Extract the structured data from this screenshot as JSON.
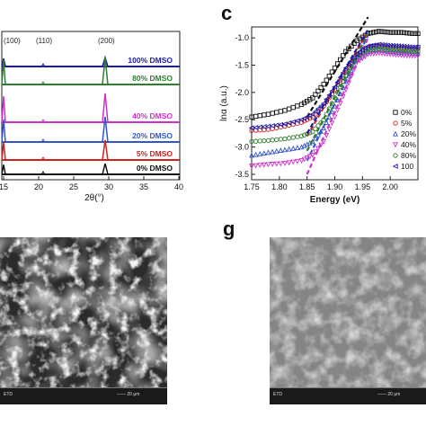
{
  "panel_labels": {
    "c": "c",
    "g": "g"
  },
  "xrd": {
    "peak_labels": [
      "(100)",
      "(110)",
      "(200)"
    ],
    "samples": [
      "100% DMSO",
      "80% DMSO",
      "40% DMSO",
      "20% DMSO",
      "5% DMSO",
      "0% DMSO"
    ],
    "colors": [
      "#1a1aa8",
      "#2f7d2f",
      "#cc33cc",
      "#3355cc",
      "#cc2222",
      "#111111"
    ],
    "x_ticks": [
      "15",
      "20",
      "25",
      "30",
      "35",
      "40"
    ],
    "xlabel": "2θ(°)"
  },
  "chart_data": {
    "type": "scatter",
    "xlabel": "Energy (eV)",
    "ylabel": "lnα (a.u.)",
    "xlim": [
      1.75,
      2.05
    ],
    "ylim": [
      -3.6,
      -0.8
    ],
    "x_ticks": [
      "1.75",
      "1.80",
      "1.85",
      "1.90",
      "1.95",
      "2.00"
    ],
    "y_ticks": [
      "-1.0",
      "-1.5",
      "-2.0",
      "-2.5",
      "-3.0",
      "-3.5"
    ],
    "legend_labels": [
      "0%",
      "5%",
      "20%",
      "40%",
      "80%",
      "100"
    ],
    "series": [
      {
        "label": "0%",
        "color": "#111111",
        "marker": "square",
        "x": [
          1.75,
          1.78,
          1.81,
          1.84,
          1.86,
          1.88,
          1.9,
          1.92,
          1.94,
          1.96,
          1.98,
          2.0,
          2.02,
          2.04
        ],
        "y": [
          -2.45,
          -2.4,
          -2.33,
          -2.22,
          -2.1,
          -1.85,
          -1.55,
          -1.25,
          -1.05,
          -0.92,
          -0.88,
          -0.9,
          -0.9,
          -0.92
        ]
      },
      {
        "label": "5%",
        "color": "#cc2222",
        "marker": "circle",
        "x": [
          1.75,
          1.78,
          1.81,
          1.84,
          1.86,
          1.88,
          1.9,
          1.92,
          1.94,
          1.96,
          1.98,
          2.0,
          2.02,
          2.04
        ],
        "y": [
          -2.7,
          -2.68,
          -2.62,
          -2.55,
          -2.45,
          -2.25,
          -1.95,
          -1.6,
          -1.3,
          -1.18,
          -1.15,
          -1.17,
          -1.18,
          -1.2
        ]
      },
      {
        "label": "20%",
        "color": "#3355cc",
        "marker": "triangle-up",
        "x": [
          1.75,
          1.78,
          1.81,
          1.84,
          1.86,
          1.88,
          1.9,
          1.92,
          1.94,
          1.96,
          1.98,
          2.0,
          2.02,
          2.04
        ],
        "y": [
          -3.15,
          -3.1,
          -3.05,
          -3.0,
          -2.9,
          -2.65,
          -2.25,
          -1.8,
          -1.4,
          -1.25,
          -1.22,
          -1.25,
          -1.27,
          -1.28
        ]
      },
      {
        "label": "40%",
        "color": "#cc33cc",
        "marker": "triangle-down",
        "x": [
          1.75,
          1.78,
          1.81,
          1.84,
          1.86,
          1.88,
          1.9,
          1.92,
          1.94,
          1.96,
          1.98,
          2.0,
          2.02,
          2.04
        ],
        "y": [
          -3.35,
          -3.32,
          -3.3,
          -3.25,
          -3.15,
          -2.9,
          -2.45,
          -1.95,
          -1.45,
          -1.3,
          -1.28,
          -1.3,
          -1.32,
          -1.33
        ]
      },
      {
        "label": "80%",
        "color": "#2f7d2f",
        "marker": "circle",
        "x": [
          1.75,
          1.78,
          1.81,
          1.84,
          1.86,
          1.88,
          1.9,
          1.92,
          1.94,
          1.96,
          1.98,
          2.0,
          2.02,
          2.04
        ],
        "y": [
          -2.9,
          -2.88,
          -2.85,
          -2.8,
          -2.72,
          -2.5,
          -2.1,
          -1.7,
          -1.35,
          -1.22,
          -1.2,
          -1.22,
          -1.23,
          -1.25
        ]
      },
      {
        "label": "100",
        "color": "#1a1aa8",
        "marker": "triangle-left",
        "x": [
          1.75,
          1.78,
          1.81,
          1.84,
          1.86,
          1.88,
          1.9,
          1.92,
          1.94,
          1.96,
          1.98,
          2.0,
          2.02,
          2.04
        ],
        "y": [
          -2.65,
          -2.62,
          -2.58,
          -2.5,
          -2.4,
          -2.2,
          -1.9,
          -1.55,
          -1.3,
          -1.15,
          -1.12,
          -1.14,
          -1.15,
          -1.17
        ]
      }
    ]
  }
}
